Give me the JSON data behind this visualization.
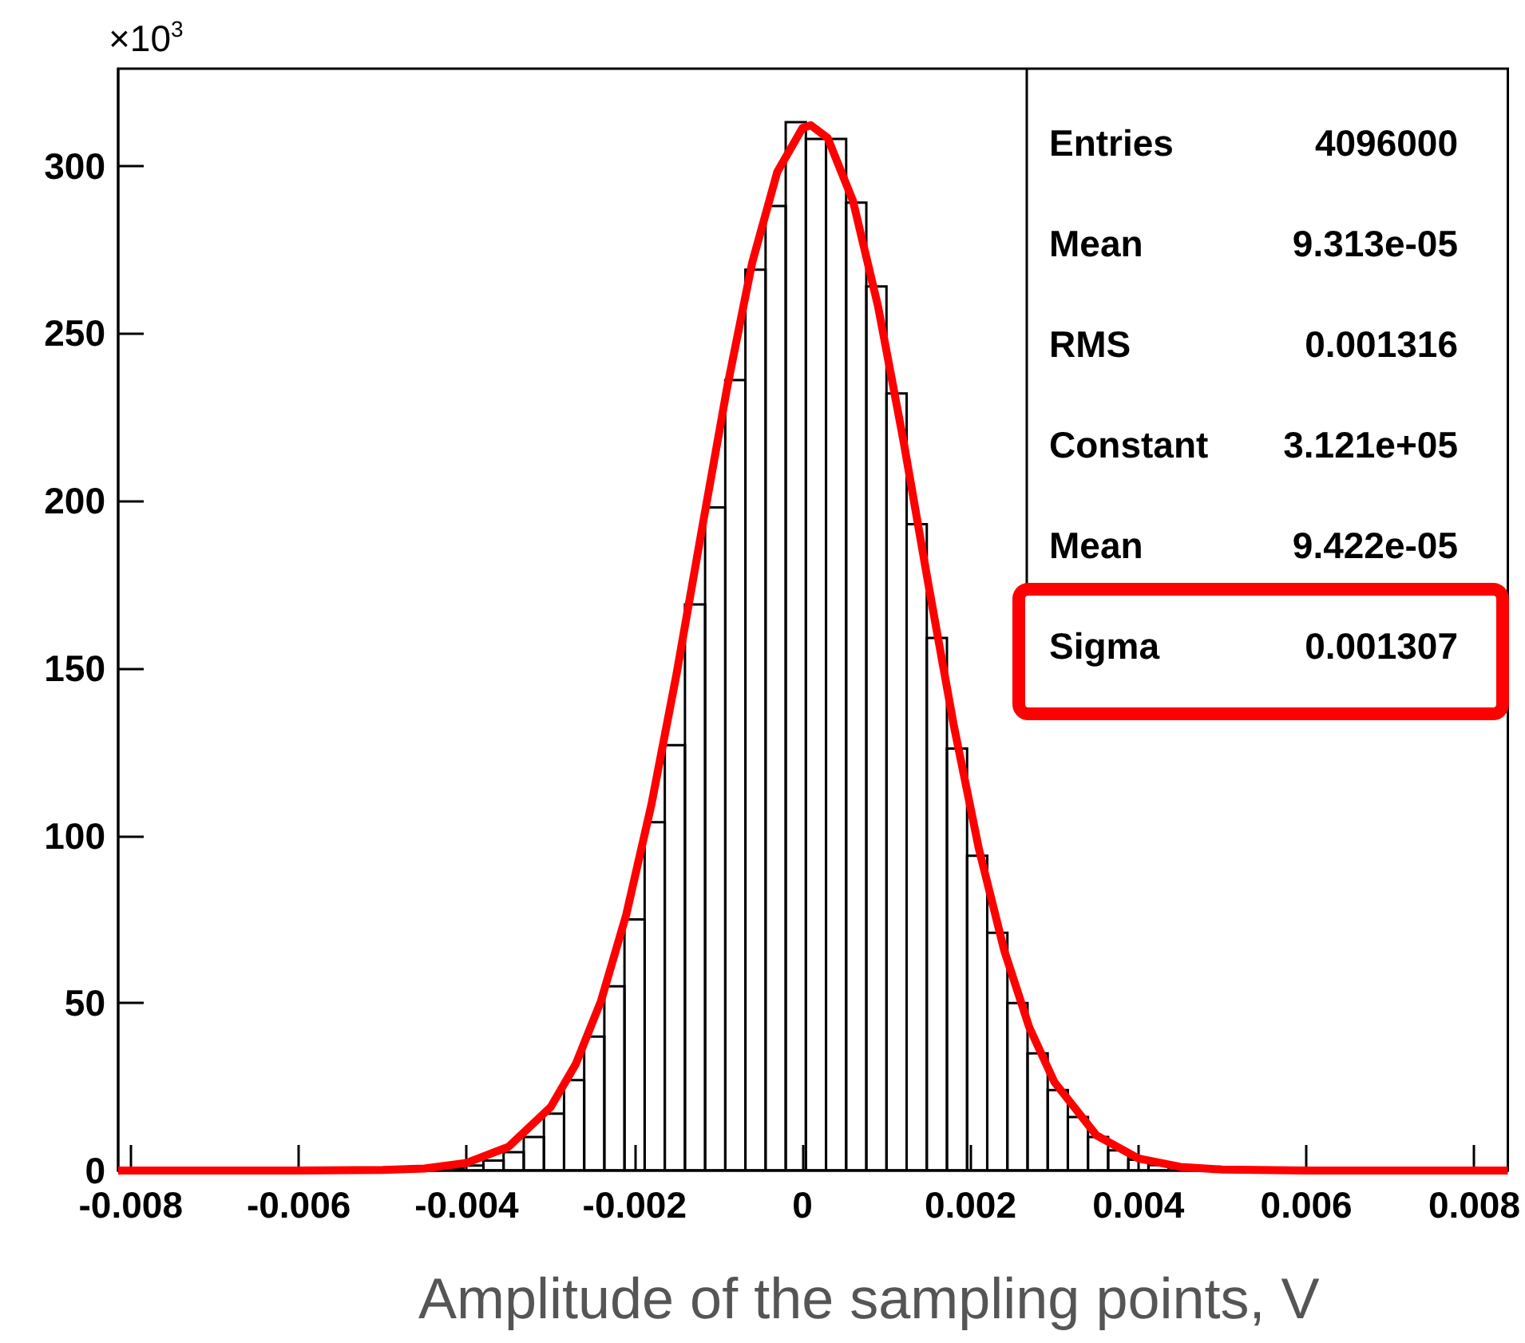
{
  "chart_data": {
    "type": "histogram",
    "ylabel": "×10$^{3}$",
    "xlabel": "Amplitude of the sampling points, V",
    "bins": [
      -0.00476,
      -0.00452,
      -0.00428,
      -0.00404,
      -0.0038,
      -0.00356,
      -0.00332,
      -0.00308,
      -0.00284,
      -0.0026,
      -0.00236,
      -0.00212,
      -0.00188,
      -0.00164,
      -0.0014,
      -0.00116,
      -0.00092,
      -0.00068,
      -0.00044,
      -0.0002,
      4e-05,
      0.00028,
      0.00052,
      0.00076,
      0.001,
      0.00124,
      0.00148,
      0.00172,
      0.00196,
      0.0022,
      0.00244,
      0.00268,
      0.00292,
      0.00316,
      0.0034,
      0.00364,
      0.00388,
      0.00412,
      0.00436,
      0.0046,
      0.00484,
      0.00508
    ],
    "series": [
      {
        "color": "#000000",
        "values": [
          0.1,
          0.3,
          0.7,
          1.5,
          3,
          5.5,
          10,
          17,
          27,
          40,
          55,
          75,
          104,
          127,
          169,
          198,
          236,
          269,
          288,
          313,
          308,
          308,
          289,
          264,
          232,
          193,
          159,
          126,
          94,
          71,
          50,
          35,
          24,
          16,
          10,
          6,
          3.2,
          1.6,
          null,
          0.3,
          0.1
        ]
      },
      {
        "type": "line",
        "color": "#ff0000",
        "marker": "none",
        "x": [
          -0.00815,
          -0.006,
          -0.005,
          -0.0045,
          -0.004,
          -0.0035,
          -0.003,
          -0.0027,
          -0.0024,
          -0.0021,
          -0.0018,
          -0.0015,
          -0.0012,
          -0.0009,
          -0.0006,
          -0.0003,
          0,
          0.0001,
          0.0003,
          0.0006,
          0.0009,
          0.0012,
          0.0015,
          0.0018,
          0.0021,
          0.0024,
          0.0027,
          0.003,
          0.0035,
          0.004,
          0.0045,
          0.005,
          0.006,
          0.0084
        ],
        "values": [
          0,
          0,
          0.2,
          0.6,
          2.3,
          7.1,
          18.9,
          31.8,
          50.6,
          76.3,
          109.2,
          148.3,
          191.2,
          233.5,
          271.0,
          298.2,
          311.3,
          312.1,
          308.3,
          289.6,
          258.0,
          218.2,
          174.9,
          133.1,
          96.1,
          65.9,
          42.8,
          26.4,
          10.5,
          3.6,
          1.1,
          0.3,
          0,
          0
        ]
      }
    ],
    "annotations": [
      "Entries",
      "4096000",
      "Mean",
      "9.313e-05",
      "RMS",
      "0.001316",
      "Constant",
      "3.121e+05",
      "Mean",
      "9.422e-05",
      "Sigma",
      "0.001307"
    ],
    "xlim": [
      -0.00815,
      0.0084
    ],
    "xticks": [
      -0.008,
      -0.006,
      -0.004,
      -0.002,
      0,
      0.002,
      0.004,
      0.006,
      0.008
    ],
    "ylim": [
      0,
      329
    ],
    "yticks": [
      0,
      50,
      100,
      150,
      200,
      250,
      300
    ],
    "grid": false
  }
}
